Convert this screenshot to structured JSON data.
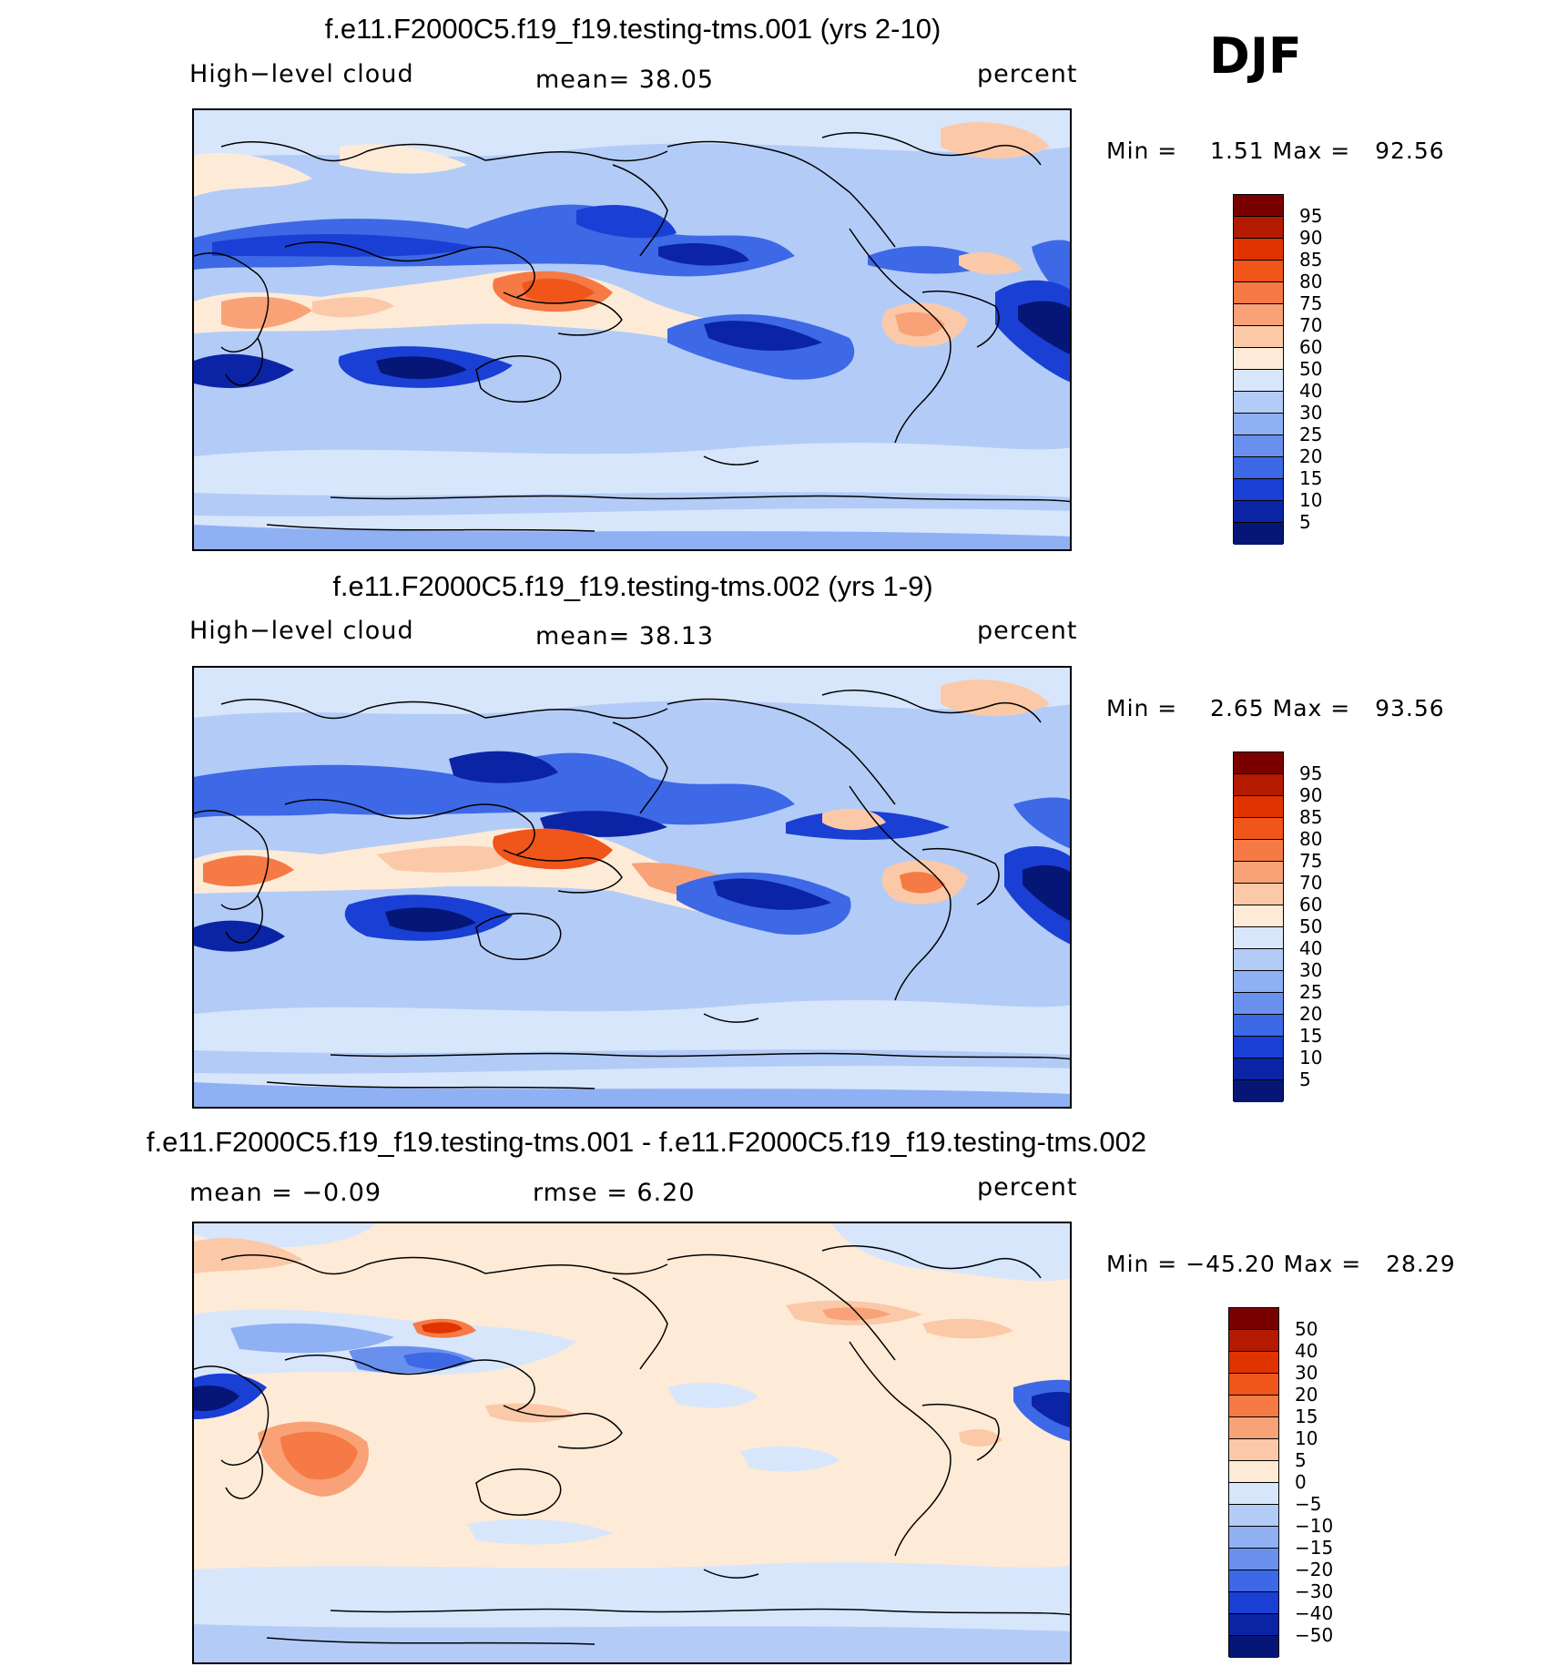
{
  "season": "DJF",
  "panels": [
    {
      "title": "f.e11.F2000C5.f19_f19.testing-tms.001 (yrs 2-10)",
      "left_label": "High−level cloud",
      "mid_label": "mean=   38.05",
      "right_label": "percent",
      "minmax": "Min =    1.51 Max =   92.56",
      "colorbar_labels": [
        "95",
        "90",
        "85",
        "80",
        "75",
        "70",
        "60",
        "50",
        "40",
        "30",
        "25",
        "20",
        "15",
        "10",
        "5"
      ]
    },
    {
      "title": "f.e11.F2000C5.f19_f19.testing-tms.002 (yrs 1-9)",
      "left_label": "High−level cloud",
      "mid_label": "mean=   38.13",
      "right_label": "percent",
      "minmax": "Min =    2.65 Max =   93.56",
      "colorbar_labels": [
        "95",
        "90",
        "85",
        "80",
        "75",
        "70",
        "60",
        "50",
        "40",
        "30",
        "25",
        "20",
        "15",
        "10",
        "5"
      ]
    },
    {
      "title": "f.e11.F2000C5.f19_f19.testing-tms.001 - f.e11.F2000C5.f19_f19.testing-tms.002",
      "left_label": "mean =   −0.09",
      "mid_label": "rmse =    6.20",
      "right_label": "percent",
      "minmax": "Min = −45.20 Max =   28.29",
      "colorbar_labels": [
        "50",
        "40",
        "30",
        "20",
        "15",
        "10",
        "5",
        "0",
        "−5",
        "−10",
        "−15",
        "−20",
        "−30",
        "−40",
        "−50"
      ]
    }
  ],
  "colors": {
    "abs_scale": [
      "#7a0000",
      "#b31a00",
      "#e03300",
      "#f0551a",
      "#f57a45",
      "#f9a277",
      "#fbc9a8",
      "#fdebd8",
      "#d8e6fb",
      "#b3ccf7",
      "#8fb0f3",
      "#6a90ee",
      "#3d68e6",
      "#1a3fd4",
      "#0b24a6",
      "#061677"
    ],
    "diff_scale": [
      "#7a0000",
      "#b31a00",
      "#e03300",
      "#f0551a",
      "#f57a45",
      "#f9a277",
      "#fbc9a8",
      "#fdebd8",
      "#d8e6fb",
      "#b3ccf7",
      "#8fb0f3",
      "#6a90ee",
      "#3d68e6",
      "#1a3fd4",
      "#0b24a6",
      "#061677"
    ]
  }
}
